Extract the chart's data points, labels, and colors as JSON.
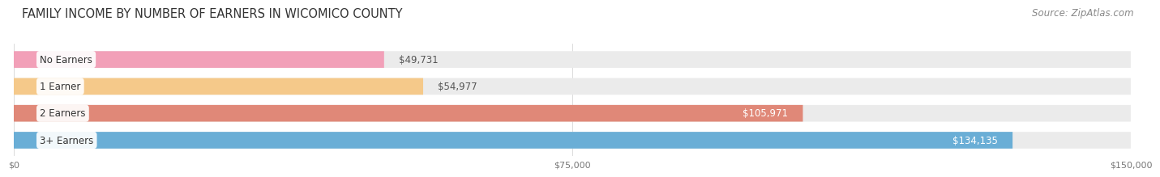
{
  "title": "FAMILY INCOME BY NUMBER OF EARNERS IN WICOMICO COUNTY",
  "source": "Source: ZipAtlas.com",
  "categories": [
    "No Earners",
    "1 Earner",
    "2 Earners",
    "3+ Earners"
  ],
  "values": [
    49731,
    54977,
    105971,
    134135
  ],
  "labels": [
    "$49,731",
    "$54,977",
    "$105,971",
    "$134,135"
  ],
  "bar_colors": [
    "#f2a0b8",
    "#f5c98a",
    "#e08878",
    "#6aaed6"
  ],
  "bar_bg_color": "#e8e8e8",
  "label_colors": [
    "#555555",
    "#555555",
    "#ffffff",
    "#ffffff"
  ],
  "xmax": 150000,
  "xticks": [
    0,
    75000,
    150000
  ],
  "xtick_labels": [
    "$0",
    "$75,000",
    "$150,000"
  ],
  "title_fontsize": 10.5,
  "source_fontsize": 8.5,
  "label_fontsize": 8.5,
  "category_fontsize": 8.5,
  "background_color": "#ffffff",
  "bar_bg_color2": "#ebebeb"
}
